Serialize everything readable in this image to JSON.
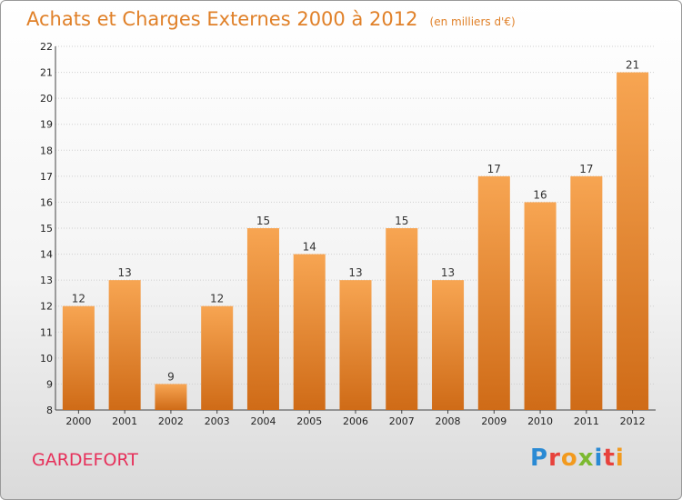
{
  "header": {
    "title": "Achats et Charges Externes 2000 à 2012",
    "subtitle": "(en milliers d'€)"
  },
  "footer": {
    "place": "GARDEFORT",
    "logo": [
      "P",
      "r",
      "o",
      "x",
      "i",
      "t",
      "i"
    ]
  },
  "colors": {
    "title": "#e08028",
    "bar_light": "#f7a552",
    "bar_dark": "#cf6b17",
    "place": "#e6305a"
  },
  "chart_data": {
    "type": "bar",
    "title": "Achats et Charges Externes 2000 à 2012",
    "subtitle": "(en milliers d'€)",
    "categories": [
      "2000",
      "2001",
      "2002",
      "2003",
      "2004",
      "2005",
      "2006",
      "2007",
      "2008",
      "2009",
      "2010",
      "2011",
      "2012"
    ],
    "values": [
      12,
      13,
      9,
      12,
      15,
      14,
      13,
      15,
      13,
      17,
      16,
      17,
      21
    ],
    "ylim": [
      8,
      22
    ],
    "yticks": [
      8,
      9,
      10,
      11,
      12,
      13,
      14,
      15,
      16,
      17,
      18,
      19,
      20,
      21,
      22
    ],
    "xlabel": "",
    "ylabel": "",
    "grid": true,
    "legend": "none"
  }
}
